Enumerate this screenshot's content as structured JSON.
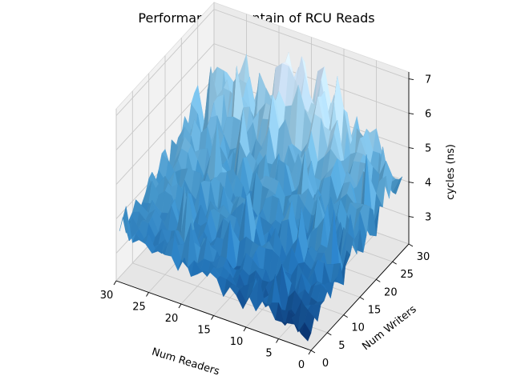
{
  "chart_data": {
    "type": "surface3d",
    "title": "Performance mountain of RCU Reads",
    "xlabel": "Num Readers",
    "ylabel": "Num Writers",
    "zlabel": "cycles (ns)",
    "x_ticks": [
      0,
      5,
      10,
      15,
      20,
      25,
      30
    ],
    "y_ticks": [
      0,
      5,
      10,
      15,
      20,
      25,
      30
    ],
    "z_ticks": [
      3,
      4,
      5,
      6,
      7
    ],
    "xlim": [
      0,
      30
    ],
    "ylim": [
      0,
      30
    ],
    "zlim": [
      2.2,
      7.2
    ],
    "colormap": "Blues",
    "grid": true,
    "surface": {
      "readers": [
        1,
        30
      ],
      "writers": [
        1,
        30
      ],
      "base_at_readers_1_writers_1": 2.5,
      "base_at_readers_30_writers_1": 3.5,
      "base_at_readers_1_writers_30": 4.3,
      "base_at_readers_30_writers_30": 4.8,
      "peak": 6.9,
      "peak_location": [
        15,
        28
      ]
    }
  }
}
